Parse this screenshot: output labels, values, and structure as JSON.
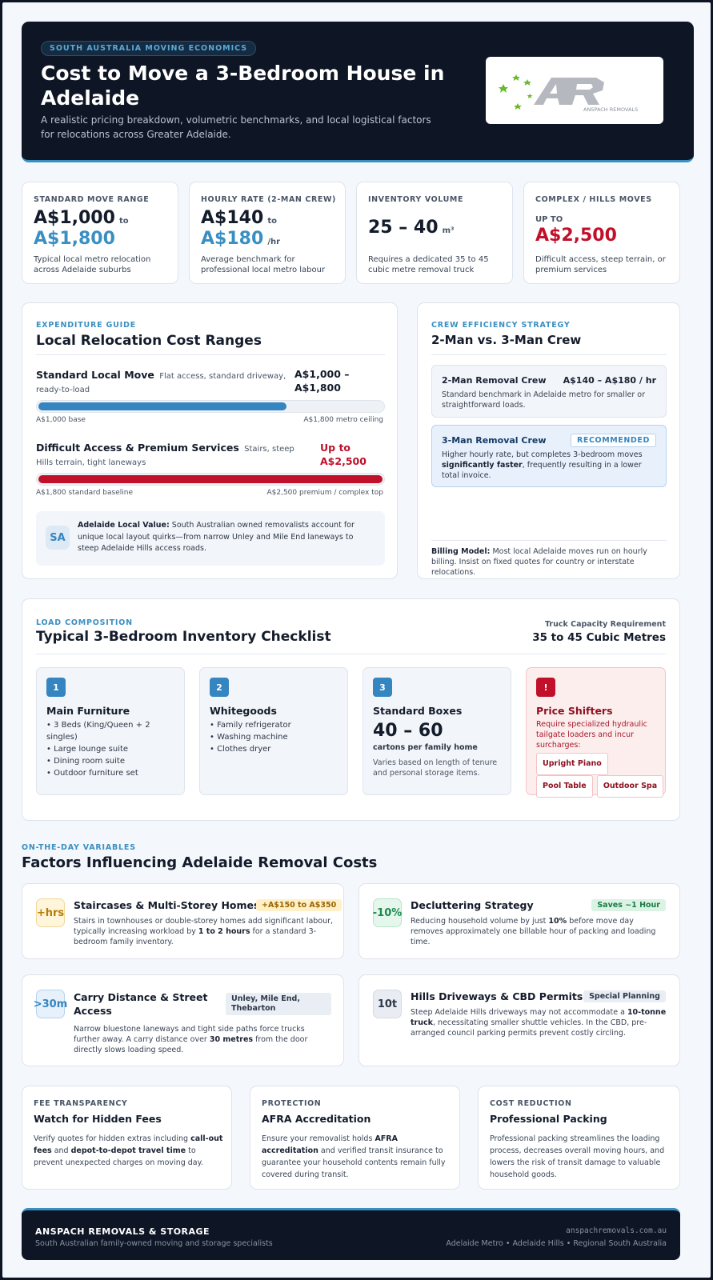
{
  "header": {
    "eyebrow": "SOUTH AUSTRALIA MOVING ECONOMICS",
    "title": "Cost to Move a 3-Bedroom House in Adelaide",
    "subtitle": "A realistic pricing breakdown, volumetric benchmarks, and local logistical factors for relocations across Greater Adelaide.",
    "logo_text": "ANSPACH REMOVALS"
  },
  "stats": [
    {
      "label": "STANDARD MOVE RANGE",
      "value_a": "A$1,000",
      "joiner": "to",
      "value_b": "A$1,800",
      "desc": "Typical local metro relocation across Adelaide suburbs"
    },
    {
      "label": "HOURLY RATE (2-MAN CREW)",
      "value_a": "A$140",
      "joiner": "to",
      "value_b": "A$180",
      "unit": "/hr",
      "desc": "Average benchmark for professional local metro labour"
    },
    {
      "label": "INVENTORY VOLUME",
      "value": "25 – 40",
      "unit": "m³",
      "desc": "Requires a dedicated 35 to 45 cubic metre removal truck"
    },
    {
      "label": "COMPLEX / HILLS MOVES",
      "pre": "UP TO",
      "value": "A$2,500",
      "desc": "Difficult access, steep terrain, or premium services"
    }
  ],
  "expenditure": {
    "eyebrow": "EXPENDITURE GUIDE",
    "title": "Local Relocation Cost Ranges",
    "rows": [
      {
        "name": "Standard Local Move",
        "note": "Flat access, standard driveway, ready-to-load",
        "price": "A$1,000 – A$1,800",
        "fill": 0.72,
        "left": "A$1,000 base",
        "right": "A$1,800 metro ceiling"
      },
      {
        "name": "Difficult Access & Premium Services",
        "note": "Stairs, steep Hills terrain, tight laneways",
        "price": "Up to A$2,500",
        "fill": 1.0,
        "left": "A$1,800 standard baseline",
        "right": "A$2,500 premium / complex top"
      }
    ],
    "callout_badge": "SA",
    "callout_title": "Adelaide Local Value:",
    "callout_text": "South Australian owned removalists account for unique local layout quirks—from narrow Unley and Mile End laneways to steep Adelaide Hills access roads."
  },
  "crew": {
    "eyebrow": "CREW EFFICIENCY STRATEGY",
    "title": "2-Man vs. 3-Man Crew",
    "two_man": {
      "name": "2-Man Removal Crew",
      "rate": "A$140 – A$180 / hr",
      "desc": "Standard benchmark in Adelaide metro for smaller or straightforward loads."
    },
    "three_man": {
      "name": "3-Man Removal Crew",
      "badge": "RECOMMENDED",
      "desc_a": "Higher hourly rate, but completes 3-bedroom moves",
      "desc_bold": "significantly faster",
      "desc_b": ", frequently resulting in a lower total invoice."
    },
    "billing_title": "Billing Model:",
    "billing_text": "Most local Adelaide moves run on hourly billing. Insist on fixed quotes for country or interstate relocations."
  },
  "inventory": {
    "eyebrow": "LOAD COMPOSITION",
    "title": "Typical 3-Bedroom Inventory Checklist",
    "req_label": "Truck Capacity Requirement",
    "req_value": "35 to 45 Cubic Metres",
    "cards": [
      {
        "num": "1",
        "title": "Main Furniture",
        "items": [
          "3 Beds (King/Queen + 2 singles)",
          "Large lounge suite",
          "Dining room suite",
          "Outdoor furniture set"
        ]
      },
      {
        "num": "2",
        "title": "Whitegoods",
        "items": [
          "Family refrigerator",
          "Washing machine",
          "Clothes dryer"
        ]
      },
      {
        "num": "3",
        "title": "Standard Boxes",
        "big": "40 – 60",
        "sub": "cartons per family home",
        "desc": "Varies based on length of tenure and personal storage items."
      },
      {
        "num": "!",
        "title": "Price Shifters",
        "desc": "Require specialized hydraulic tailgate loaders and incur surcharges:",
        "tags": [
          "Upright Piano",
          "Pool Table",
          "Outdoor Spa"
        ]
      }
    ]
  },
  "factors": {
    "eyebrow": "ON-THE-DAY VARIABLES",
    "title": "Factors Influencing Adelaide Removal Costs",
    "items": [
      {
        "badge": "+hrs",
        "title": "Staircases & Multi-Storey Homes",
        "tag": "+A$150 to A$350",
        "text_a": "Stairs in townhouses or double-storey homes add significant labour, typically increasing workload by ",
        "bold": "1 to 2 hours",
        "text_b": " for a standard 3-bedroom family inventory."
      },
      {
        "badge": "-10%",
        "title": "Decluttering Strategy",
        "tag": "Saves ~1 Hour",
        "text_a": "Reducing household volume by just ",
        "bold": "10%",
        "text_b": " before move day removes approximately one billable hour of packing and loading time."
      },
      {
        "badge": ">30m",
        "title": "Carry Distance & Street Access",
        "tag": "Unley, Mile End, Thebarton",
        "text_a": "Narrow bluestone laneways and tight side paths force trucks further away. A carry distance over ",
        "bold": "30 metres",
        "text_b": " from the door directly slows loading speed."
      },
      {
        "badge": "10t",
        "title": "Hills Driveways & CBD Permits",
        "tag": "Special Planning",
        "text_a": "Steep Adelaide Hills driveways may not accommodate a ",
        "bold": "10-tonne truck",
        "text_b": ", necessitating smaller shuttle vehicles. In the CBD, pre-arranged council parking permits prevent costly circling."
      }
    ]
  },
  "tips": [
    {
      "eyebrow": "FEE TRANSPARENCY",
      "title": "Watch for Hidden Fees",
      "text_a": "Verify quotes for hidden extras including ",
      "bold_a": "call-out fees",
      "text_b": " and ",
      "bold_b": "depot-to-depot travel time",
      "text_c": " to prevent unexpected charges on moving day."
    },
    {
      "eyebrow": "PROTECTION",
      "title": "AFRA Accreditation",
      "text_a": "Ensure your removalist holds ",
      "bold_a": "AFRA accreditation",
      "text_b": " and verified transit insurance to guarantee your household contents remain fully covered during transit."
    },
    {
      "eyebrow": "COST REDUCTION",
      "title": "Professional Packing",
      "text_a": "Professional packing streamlines the loading process, decreases overall moving hours, and lowers the risk of transit damage to valuable household goods."
    }
  ],
  "footer": {
    "brand": "ANSPACH REMOVALS & STORAGE",
    "tagline": "South Australian family-owned moving and storage specialists",
    "site": "anspachremovals.com.au",
    "areas": "Adelaide Metro • Adelaide Hills • Regional South Australia"
  },
  "colors": {
    "navy": "#0e1524",
    "accent": "#3a8fc2",
    "red": "#c0102a"
  }
}
